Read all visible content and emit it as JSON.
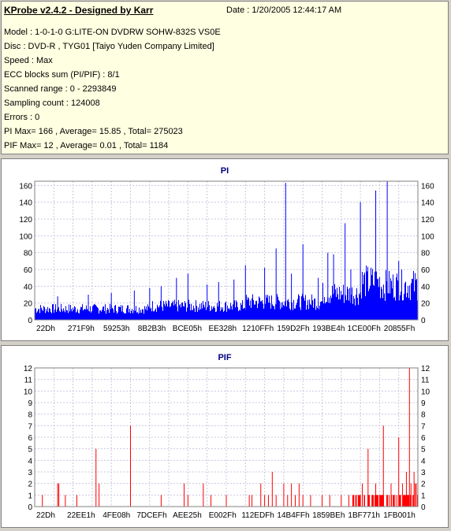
{
  "info": {
    "title": "KProbe v2.4.2 - Designed by Karr",
    "date": "Date : 1/20/2005 12:44:17 AM",
    "lines": [
      "Model : 1-0-1-0 G:LITE-ON DVDRW SOHW-832S  VS0E",
      "Disc : DVD-R , TYG01 [Taiyo Yuden Company Limited]",
      "Speed : Max",
      "ECC blocks sum (PI/PIF) : 8/1",
      "Scanned range : 0 - 2293849",
      "Sampling count : 124008",
      "Errors : 0",
      "PI Max= 166 , Average= 15.85 , Total= 275023",
      "PIF Max= 12 , Average= 0.01 , Total= 1184"
    ]
  },
  "chart_data": [
    {
      "type": "bar",
      "title": "PI",
      "color": "#0000ff",
      "ylim": [
        0,
        165
      ],
      "yticks": [
        0,
        20,
        40,
        60,
        80,
        100,
        120,
        140,
        160
      ],
      "x_tick_labels": [
        "22Dh",
        "271F9h",
        "59253h",
        "8B2B3h",
        "BCE05h",
        "EE328h",
        "1210FFh",
        "159D2Fh",
        "193BE4h",
        "1CE00Fh",
        "20855Fh"
      ],
      "grid": true,
      "baseline_segments": [
        {
          "from": 0.0,
          "to": 0.3,
          "level": 16
        },
        {
          "from": 0.3,
          "to": 0.55,
          "level": 20
        },
        {
          "from": 0.55,
          "to": 0.75,
          "level": 26
        },
        {
          "from": 0.75,
          "to": 0.85,
          "level": 38
        },
        {
          "from": 0.85,
          "to": 0.9,
          "level": 55
        },
        {
          "from": 0.9,
          "to": 1.0,
          "level": 50
        }
      ],
      "spikes": [
        {
          "x": 0.06,
          "y": 28
        },
        {
          "x": 0.14,
          "y": 30
        },
        {
          "x": 0.2,
          "y": 32
        },
        {
          "x": 0.26,
          "y": 35
        },
        {
          "x": 0.3,
          "y": 38
        },
        {
          "x": 0.33,
          "y": 40
        },
        {
          "x": 0.37,
          "y": 50
        },
        {
          "x": 0.4,
          "y": 55
        },
        {
          "x": 0.45,
          "y": 42
        },
        {
          "x": 0.48,
          "y": 45
        },
        {
          "x": 0.52,
          "y": 48
        },
        {
          "x": 0.55,
          "y": 65
        },
        {
          "x": 0.6,
          "y": 62
        },
        {
          "x": 0.63,
          "y": 85
        },
        {
          "x": 0.655,
          "y": 163
        },
        {
          "x": 0.67,
          "y": 55
        },
        {
          "x": 0.7,
          "y": 90
        },
        {
          "x": 0.74,
          "y": 50
        },
        {
          "x": 0.765,
          "y": 80
        },
        {
          "x": 0.78,
          "y": 78
        },
        {
          "x": 0.81,
          "y": 115
        },
        {
          "x": 0.825,
          "y": 60
        },
        {
          "x": 0.85,
          "y": 140
        },
        {
          "x": 0.89,
          "y": 154
        },
        {
          "x": 0.92,
          "y": 165
        },
        {
          "x": 0.95,
          "y": 70
        }
      ]
    },
    {
      "type": "bar",
      "title": "PIF",
      "color": "#ff0000",
      "ylim": [
        0,
        12
      ],
      "yticks": [
        0,
        1,
        2,
        3,
        4,
        5,
        6,
        7,
        8,
        9,
        10,
        11,
        12
      ],
      "x_tick_labels": [
        "22Dh",
        "22EE1h",
        "4FE08h",
        "7DCEFh",
        "AEE25h",
        "E002Fh",
        "112EDFh",
        "14B4FFh",
        "1859BEh",
        "1BF771h",
        "1FB001h"
      ],
      "grid": true,
      "bars": [
        {
          "x": 0.02,
          "y": 1
        },
        {
          "x": 0.06,
          "y": 2
        },
        {
          "x": 0.063,
          "y": 2
        },
        {
          "x": 0.08,
          "y": 1
        },
        {
          "x": 0.11,
          "y": 1
        },
        {
          "x": 0.16,
          "y": 5
        },
        {
          "x": 0.168,
          "y": 2
        },
        {
          "x": 0.25,
          "y": 7
        },
        {
          "x": 0.33,
          "y": 1
        },
        {
          "x": 0.39,
          "y": 2
        },
        {
          "x": 0.4,
          "y": 1
        },
        {
          "x": 0.44,
          "y": 2
        },
        {
          "x": 0.46,
          "y": 1
        },
        {
          "x": 0.5,
          "y": 1
        },
        {
          "x": 0.56,
          "y": 1
        },
        {
          "x": 0.567,
          "y": 1
        },
        {
          "x": 0.59,
          "y": 2
        },
        {
          "x": 0.6,
          "y": 1
        },
        {
          "x": 0.61,
          "y": 1
        },
        {
          "x": 0.62,
          "y": 3
        },
        {
          "x": 0.63,
          "y": 1
        },
        {
          "x": 0.65,
          "y": 2
        },
        {
          "x": 0.66,
          "y": 1
        },
        {
          "x": 0.67,
          "y": 2
        },
        {
          "x": 0.68,
          "y": 1
        },
        {
          "x": 0.69,
          "y": 2
        },
        {
          "x": 0.7,
          "y": 1
        },
        {
          "x": 0.72,
          "y": 1
        },
        {
          "x": 0.75,
          "y": 1
        },
        {
          "x": 0.77,
          "y": 1
        },
        {
          "x": 0.8,
          "y": 1
        },
        {
          "x": 0.82,
          "y": 1
        },
        {
          "x": 0.83,
          "y": 1
        },
        {
          "x": 0.84,
          "y": 1
        },
        {
          "x": 0.85,
          "y": 1
        },
        {
          "x": 0.855,
          "y": 2
        },
        {
          "x": 0.86,
          "y": 1
        },
        {
          "x": 0.87,
          "y": 5
        },
        {
          "x": 0.88,
          "y": 1
        },
        {
          "x": 0.89,
          "y": 2
        },
        {
          "x": 0.9,
          "y": 1
        },
        {
          "x": 0.91,
          "y": 7
        },
        {
          "x": 0.92,
          "y": 1
        },
        {
          "x": 0.93,
          "y": 2
        },
        {
          "x": 0.94,
          "y": 1
        },
        {
          "x": 0.945,
          "y": 1
        },
        {
          "x": 0.95,
          "y": 6
        },
        {
          "x": 0.955,
          "y": 1
        },
        {
          "x": 0.96,
          "y": 2
        },
        {
          "x": 0.965,
          "y": 1
        },
        {
          "x": 0.97,
          "y": 3
        },
        {
          "x": 0.975,
          "y": 1
        },
        {
          "x": 0.978,
          "y": 12
        },
        {
          "x": 0.982,
          "y": 2
        },
        {
          "x": 0.986,
          "y": 1
        },
        {
          "x": 0.99,
          "y": 3
        },
        {
          "x": 0.993,
          "y": 2
        },
        {
          "x": 0.996,
          "y": 2
        }
      ],
      "dense_range": {
        "from": 0.83,
        "to": 1.0,
        "level": 1
      }
    }
  ]
}
